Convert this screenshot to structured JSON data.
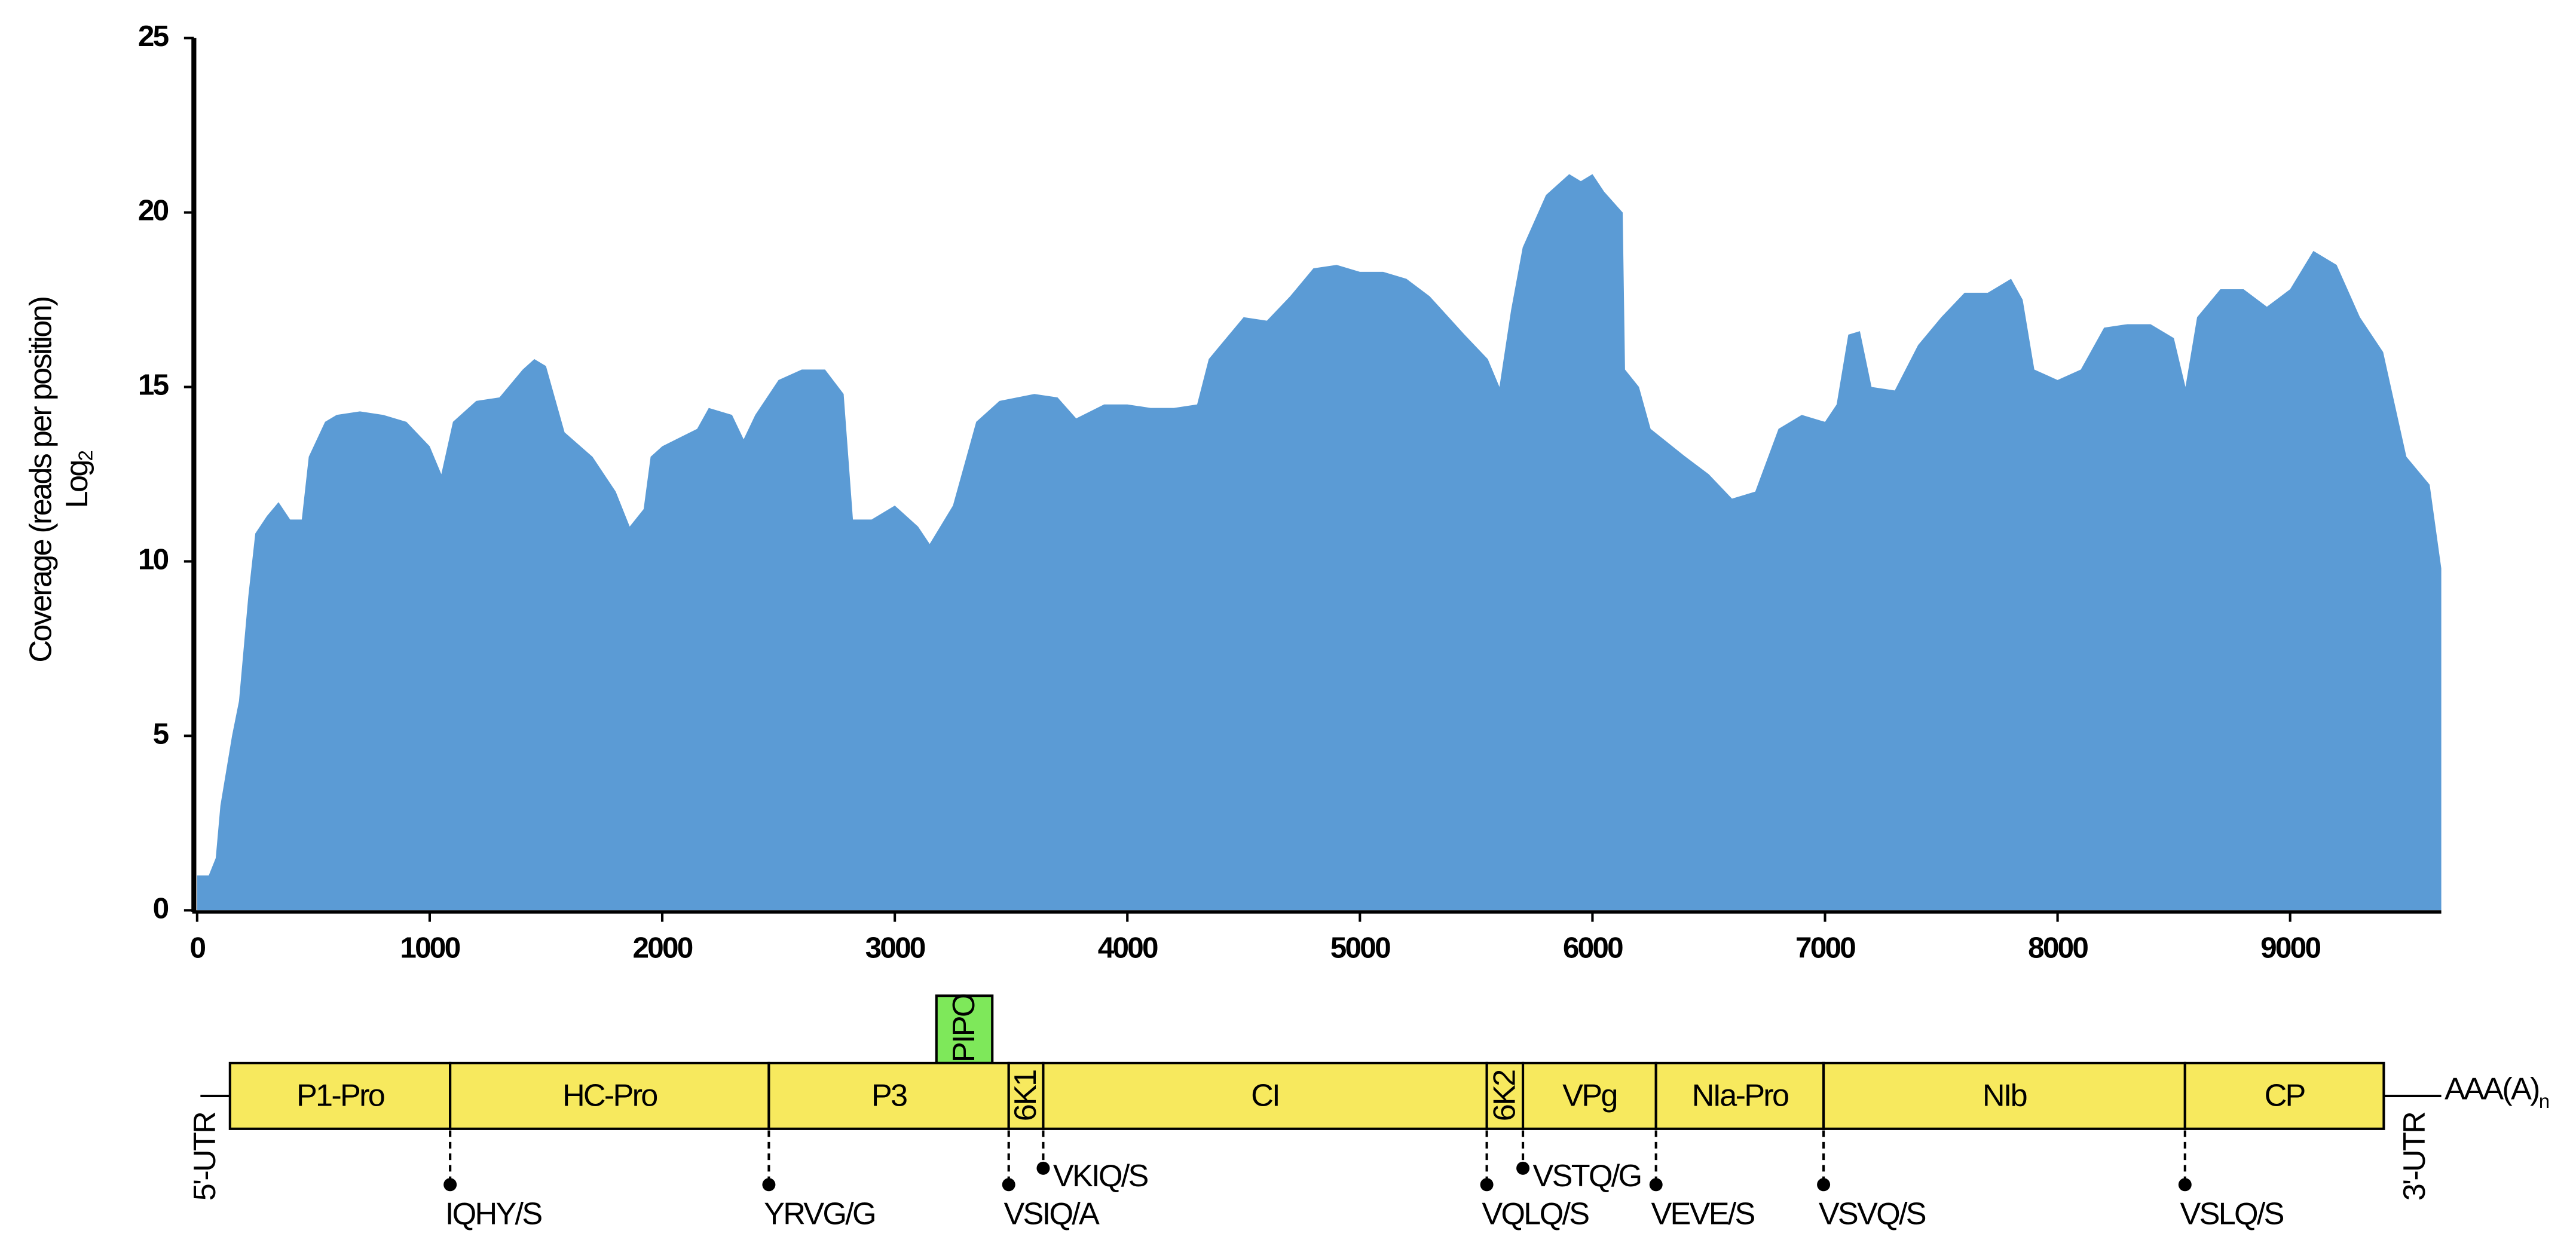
{
  "chart_data": {
    "type": "area",
    "color": "#5b9bd5",
    "y_label": "Coverage (reads per position)",
    "y_label_2": "Log",
    "y_label_2_sub": "2",
    "xlim": [
      0,
      9650
    ],
    "ylim": [
      0,
      25
    ],
    "xticks": [
      0,
      1000,
      2000,
      3000,
      4000,
      5000,
      6000,
      7000,
      8000,
      9000
    ],
    "yticks": [
      0,
      5,
      10,
      15,
      20,
      25
    ],
    "x": [
      0,
      50,
      80,
      100,
      150,
      180,
      220,
      250,
      300,
      350,
      400,
      450,
      480,
      550,
      600,
      700,
      800,
      900,
      1000,
      1050,
      1100,
      1200,
      1300,
      1400,
      1450,
      1500,
      1580,
      1700,
      1800,
      1860,
      1920,
      1950,
      2000,
      2150,
      2200,
      2300,
      2350,
      2400,
      2500,
      2600,
      2700,
      2780,
      2820,
      2900,
      3000,
      3100,
      3150,
      3250,
      3350,
      3450,
      3600,
      3700,
      3780,
      3900,
      4000,
      4100,
      4200,
      4300,
      4350,
      4500,
      4600,
      4700,
      4800,
      4900,
      5000,
      5100,
      5200,
      5300,
      5450,
      5550,
      5600,
      5650,
      5700,
      5800,
      5900,
      5950,
      6000,
      6050,
      6130,
      6140,
      6200,
      6250,
      6400,
      6500,
      6600,
      6700,
      6800,
      6900,
      7000,
      7050,
      7100,
      7150,
      7200,
      7300,
      7400,
      7500,
      7600,
      7700,
      7800,
      7850,
      7900,
      8000,
      8100,
      8200,
      8300,
      8400,
      8500,
      8550,
      8600,
      8700,
      8800,
      8900,
      9000,
      9100,
      9200,
      9300,
      9400,
      9500,
      9600,
      9650
    ],
    "values": [
      1,
      1,
      1.5,
      3,
      5,
      6,
      9,
      10.8,
      11.3,
      11.7,
      11.2,
      11.2,
      13,
      14,
      14.2,
      14.3,
      14.2,
      14,
      13.3,
      12.5,
      14,
      14.6,
      14.7,
      15.5,
      15.8,
      15.6,
      13.7,
      13,
      12,
      11,
      11.5,
      13,
      13.3,
      13.8,
      14.4,
      14.2,
      13.5,
      14.2,
      15.2,
      15.5,
      15.5,
      14.8,
      11.2,
      11.2,
      11.6,
      11,
      10.5,
      11.6,
      14,
      14.6,
      14.8,
      14.7,
      14.1,
      14.5,
      14.5,
      14.4,
      14.4,
      14.5,
      15.8,
      17,
      16.9,
      17.6,
      18.4,
      18.5,
      18.3,
      18.3,
      18.1,
      17.6,
      16.5,
      15.8,
      15,
      17.2,
      19,
      20.5,
      21.1,
      20.9,
      21.1,
      20.6,
      20,
      15.5,
      15,
      13.8,
      13,
      12.5,
      11.8,
      12,
      13.8,
      14.2,
      14,
      14.5,
      16.5,
      16.6,
      15,
      14.9,
      16.2,
      17,
      17.7,
      17.7,
      18.1,
      17.5,
      15.5,
      15.2,
      15.5,
      16.7,
      16.8,
      16.8,
      16.4,
      15,
      17,
      17.8,
      17.8,
      17.3,
      17.8,
      18.9,
      18.5,
      17,
      16,
      13,
      12.2,
      9.8
    ]
  },
  "genome_map": {
    "utr5": "5'-UTR",
    "utr3": "3'-UTR",
    "tail": "AAA(A)",
    "tail_sub": "n",
    "pipo": "PIPO",
    "regions": [
      "P1-Pro",
      "HC-Pro",
      "P3",
      "6K1",
      "CI",
      "6K2",
      "VPg",
      "NIa-Pro",
      "NIb",
      "CP"
    ],
    "sites": [
      "IQHY/S",
      "YRVG/G",
      "VSIQ/A",
      "VKIQ/S",
      "VQLQ/S",
      "VSTQ/G",
      "VEVE/S",
      "VSVQ/S",
      "VSLQ/S"
    ]
  }
}
